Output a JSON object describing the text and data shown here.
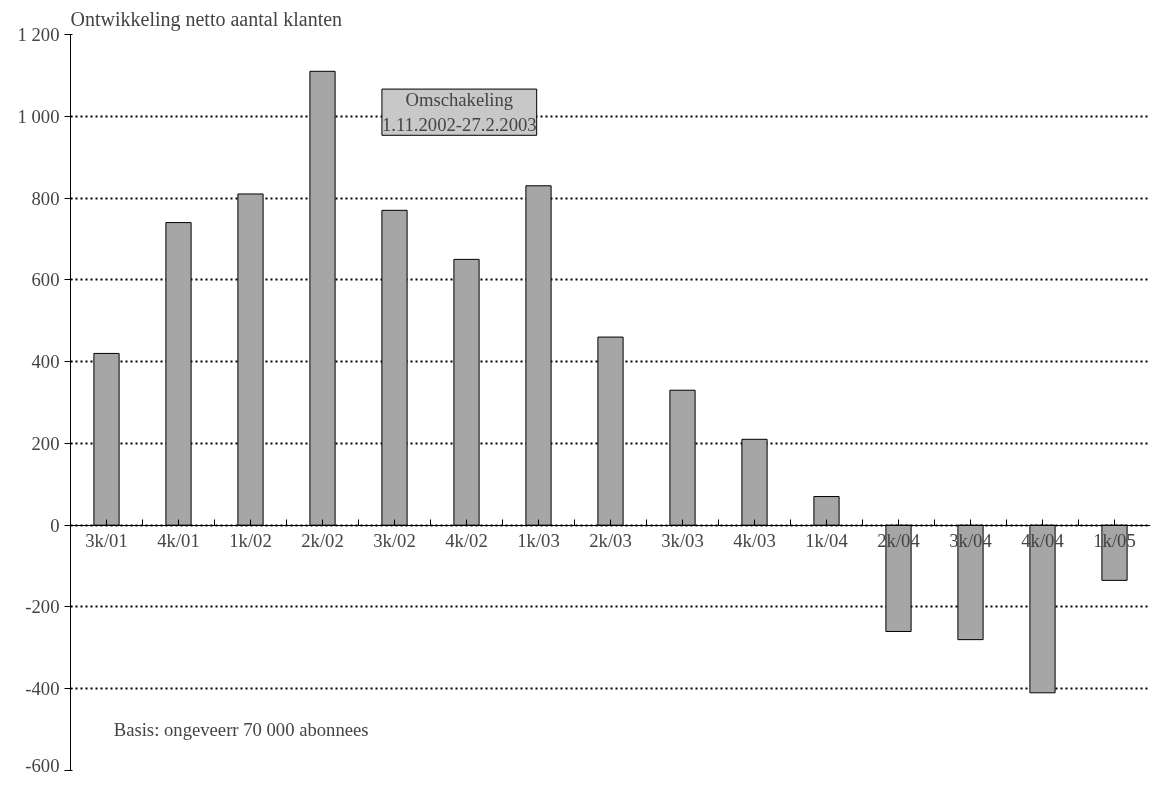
{
  "chart_data": {
    "type": "bar",
    "title": "Ontwikkeling netto aantal klanten",
    "categories": [
      "3k/01",
      "4k/01",
      "1k/02",
      "2k/02",
      "3k/02",
      "4k/02",
      "1k/03",
      "2k/03",
      "3k/03",
      "4k/03",
      "1k/04",
      "2k/04",
      "3k/04",
      "4k/04",
      "1k/05"
    ],
    "values": [
      420,
      740,
      810,
      1110,
      770,
      650,
      830,
      460,
      330,
      210,
      70,
      -260,
      -280,
      -410,
      -135
    ],
    "color": "#a6a6a6",
    "ylim": [
      -600,
      1200
    ],
    "yticks": [
      -600,
      -400,
      -200,
      0,
      200,
      400,
      600,
      800,
      {
        "value": 1000,
        "label": "1 000"
      },
      {
        "value": 1200,
        "label": "1 200"
      }
    ],
    "grid": "y",
    "line_style": "dotted",
    "annotations": [
      "Omschakeling\n1.11.2002-27.2.2003",
      "Basis: ongeveerr 70 000 abonnees"
    ]
  }
}
